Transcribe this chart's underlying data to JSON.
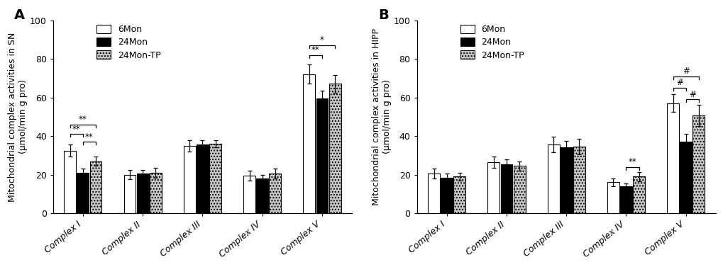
{
  "panel_A": {
    "title": "A",
    "ylabel": "Mitochondrial complex activities in SN\n(μmol/min g pro)",
    "categories": [
      "Complex I",
      "Complex II",
      "Complex III",
      "Complex IV",
      "Complex V"
    ],
    "groups": [
      "6Mon",
      "24Mon",
      "24Mon-TP"
    ],
    "values": [
      [
        32.5,
        21.0,
        27.0
      ],
      [
        20.0,
        20.5,
        21.0
      ],
      [
        35.0,
        35.5,
        36.0
      ],
      [
        19.5,
        18.0,
        20.5
      ],
      [
        72.0,
        59.5,
        67.0
      ]
    ],
    "errors": [
      [
        3.0,
        2.0,
        2.5
      ],
      [
        2.5,
        2.0,
        2.5
      ],
      [
        3.0,
        2.5,
        2.0
      ],
      [
        2.5,
        2.0,
        2.5
      ],
      [
        5.0,
        4.0,
        4.5
      ]
    ],
    "ylim": [
      0,
      100
    ],
    "yticks": [
      0,
      20,
      40,
      60,
      80,
      100
    ],
    "significance": {
      "complex_I": {
        "brackets": [
          {
            "from": 0,
            "to": 1,
            "label": "**",
            "y": 41
          },
          {
            "from": 0,
            "to": 2,
            "label": "**",
            "y": 46
          },
          {
            "from": 1,
            "to": 2,
            "label": "**",
            "y": 37
          }
        ]
      },
      "complex_V": {
        "brackets": [
          {
            "from": 0,
            "to": 1,
            "label": "**",
            "y": 82
          },
          {
            "from": 0,
            "to": 2,
            "label": "*",
            "y": 87
          }
        ]
      }
    }
  },
  "panel_B": {
    "title": "B",
    "ylabel": "Mitochondrial complex activities in HIPP\n(μmol/min g pro)",
    "categories": [
      "Complex I",
      "Complex II",
      "Complex III",
      "Complex IV",
      "Complex V"
    ],
    "groups": [
      "6Mon",
      "24Mon",
      "24Mon-TP"
    ],
    "values": [
      [
        20.5,
        18.5,
        19.0
      ],
      [
        26.5,
        25.5,
        24.5
      ],
      [
        35.5,
        34.0,
        34.5
      ],
      [
        16.0,
        14.0,
        19.0
      ],
      [
        57.0,
        37.0,
        50.5
      ]
    ],
    "errors": [
      [
        2.5,
        2.0,
        2.0
      ],
      [
        3.0,
        2.5,
        2.5
      ],
      [
        4.0,
        3.5,
        4.0
      ],
      [
        2.0,
        1.5,
        2.5
      ],
      [
        4.5,
        4.0,
        5.5
      ]
    ],
    "ylim": [
      0,
      100
    ],
    "yticks": [
      0,
      20,
      40,
      60,
      80,
      100
    ],
    "significance": {
      "complex_IV": {
        "brackets": [
          {
            "from": 1,
            "to": 2,
            "label": "**",
            "y": 24
          }
        ]
      },
      "complex_V": {
        "brackets": [
          {
            "from": 0,
            "to": 1,
            "label": "#",
            "y": 65
          },
          {
            "from": 0,
            "to": 2,
            "label": "#",
            "y": 71
          },
          {
            "from": 1,
            "to": 2,
            "label": "#",
            "y": 59
          }
        ]
      }
    }
  },
  "colors": {
    "6Mon": "#ffffff",
    "24Mon": "#000000",
    "24Mon-TP": "#c8c8c8"
  },
  "hatches": {
    "6Mon": null,
    "24Mon": null,
    "24Mon-TP": "...."
  },
  "bar_width": 0.2,
  "edgecolor": "#000000",
  "background": "#ffffff",
  "legend_fontsize": 9,
  "axis_fontsize": 9,
  "tick_fontsize": 9
}
